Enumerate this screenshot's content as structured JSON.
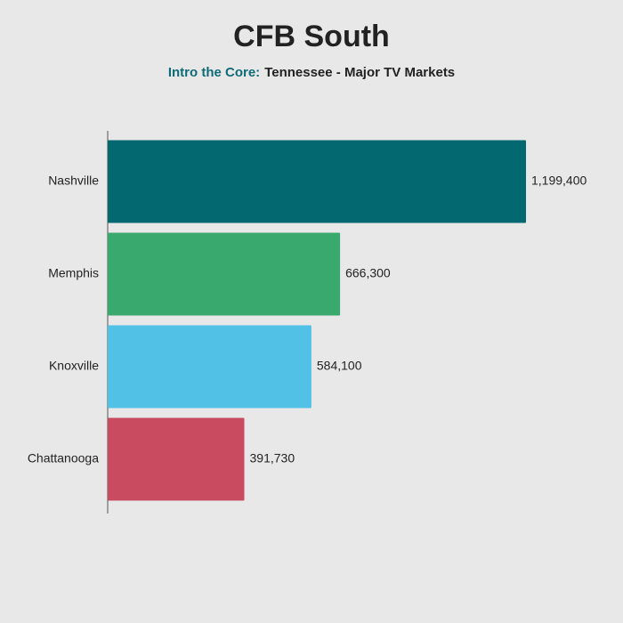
{
  "chart_data": {
    "type": "bar",
    "orientation": "horizontal",
    "title": "CFB South",
    "subtitle": {
      "highlight": "Intro the Core:",
      "text": "Tennessee - Major TV Markets"
    },
    "subtitle_highlight_color": "#0f6b78",
    "categories": [
      "Nashville",
      "Memphis",
      "Knoxville",
      "Chattanooga"
    ],
    "values": [
      1199400,
      666300,
      584100,
      391730
    ],
    "value_labels": [
      "1,199,400",
      "666,300",
      "584,100",
      "391,730"
    ],
    "colors": [
      "#046870",
      "#3aa96e",
      "#51c1e6",
      "#c94b60"
    ]
  }
}
